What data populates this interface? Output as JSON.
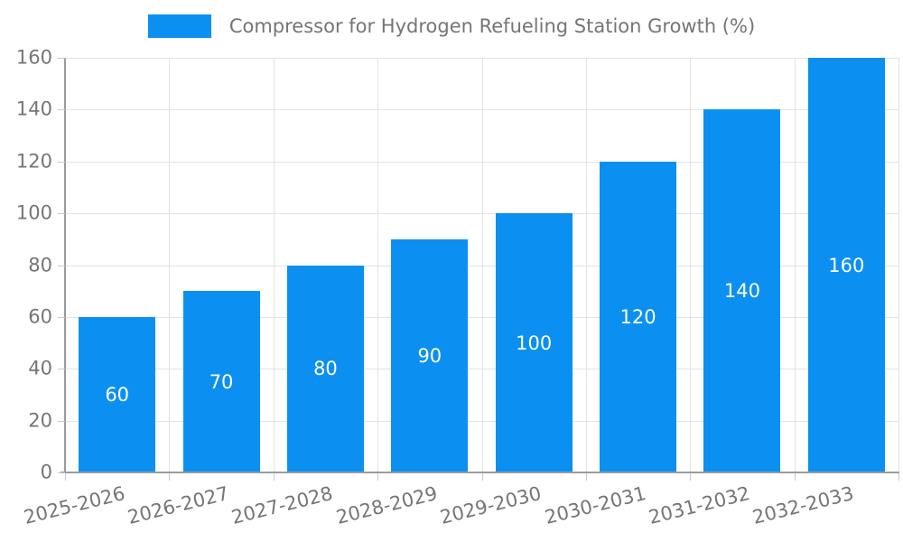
{
  "chart_data": {
    "type": "bar",
    "title": "Compressor for Hydrogen Refueling Station Growth (%)",
    "categories": [
      "2025-2026",
      "2026-2027",
      "2027-2028",
      "2028-2029",
      "2029-2030",
      "2030-2031",
      "2031-2032",
      "2032-2033"
    ],
    "values": [
      60,
      70,
      80,
      90,
      100,
      120,
      140,
      160
    ],
    "xlabel": "",
    "ylabel": "",
    "ylim": [
      0,
      160
    ],
    "ytick_step": 20,
    "grid": true,
    "legend_position": "top-center",
    "bar_label_position": "inside-center",
    "x_label_rotation_deg": -14
  },
  "legend": {
    "items": [
      {
        "label": "Compressor for Hydrogen Refueling Station Growth (%)",
        "swatch_color": "#0b90f2"
      }
    ]
  },
  "colors": {
    "bar": "#0b90f2",
    "bar_value_label": "#ffffff",
    "grid": "#e2e2e2",
    "axis": "#9b9b9b",
    "tick": "#c9c9c9",
    "text": "#757575",
    "background": "#ffffff"
  }
}
